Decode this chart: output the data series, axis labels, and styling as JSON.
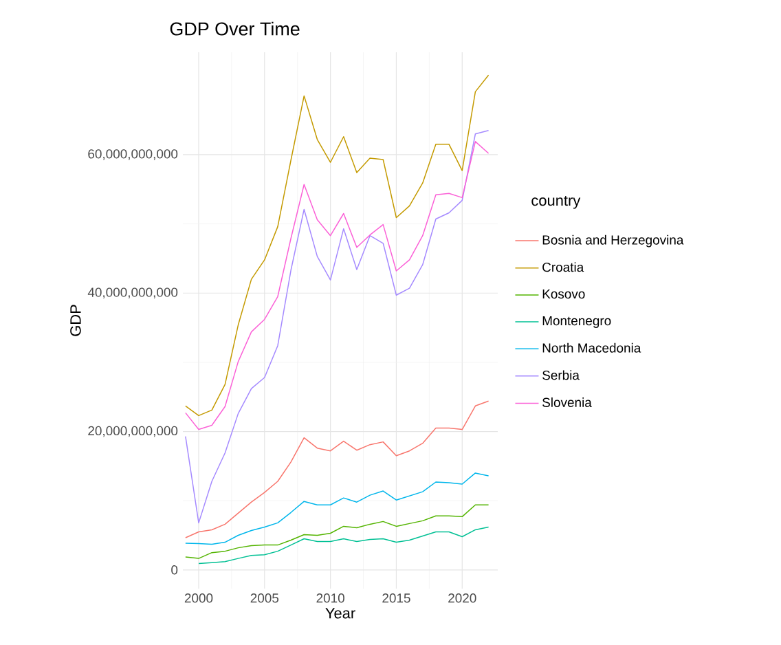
{
  "chart_data": {
    "type": "line",
    "title": "GDP Over Time",
    "xlabel": "Year",
    "ylabel": "GDP",
    "legend_title": "country",
    "x": [
      1999,
      2000,
      2001,
      2002,
      2003,
      2004,
      2005,
      2006,
      2007,
      2008,
      2009,
      2010,
      2011,
      2012,
      2013,
      2014,
      2015,
      2016,
      2017,
      2018,
      2019,
      2020,
      2021,
      2022
    ],
    "series": [
      {
        "name": "Bosnia and Herzegovina",
        "color": "#f8766d",
        "values": [
          4650000000,
          5500000000,
          5800000000,
          6600000000,
          8200000000,
          9800000000,
          11200000000,
          12800000000,
          15600000000,
          19100000000,
          17600000000,
          17200000000,
          18600000000,
          17300000000,
          18100000000,
          18500000000,
          16500000000,
          17200000000,
          18300000000,
          20500000000,
          20500000000,
          20300000000,
          23700000000,
          24400000000
        ]
      },
      {
        "name": "Croatia",
        "color": "#c49a00",
        "values": [
          23700000000,
          22300000000,
          23100000000,
          26800000000,
          35400000000,
          42000000000,
          44800000000,
          49600000000,
          59200000000,
          68500000000,
          62200000000,
          58900000000,
          62600000000,
          57400000000,
          59500000000,
          59300000000,
          50900000000,
          52600000000,
          55900000000,
          61500000000,
          61500000000,
          57700000000,
          69100000000,
          71500000000
        ]
      },
      {
        "name": "Kosovo",
        "color": "#53b400",
        "values": [
          1860000000,
          1660000000,
          2500000000,
          2700000000,
          3200000000,
          3500000000,
          3600000000,
          3600000000,
          4300000000,
          5100000000,
          5000000000,
          5300000000,
          6300000000,
          6100000000,
          6600000000,
          7000000000,
          6300000000,
          6700000000,
          7100000000,
          7800000000,
          7800000000,
          7700000000,
          9400000000,
          9400000000
        ]
      },
      {
        "name": "Montenegro",
        "color": "#00c094",
        "values": [
          null,
          930000000,
          1060000000,
          1200000000,
          1660000000,
          2100000000,
          2200000000,
          2700000000,
          3600000000,
          4500000000,
          4100000000,
          4100000000,
          4500000000,
          4100000000,
          4400000000,
          4500000000,
          4000000000,
          4300000000,
          4900000000,
          5500000000,
          5500000000,
          4800000000,
          5800000000,
          6200000000
        ]
      },
      {
        "name": "North Macedonia",
        "color": "#00b6eb",
        "values": [
          3850000000,
          3800000000,
          3700000000,
          4000000000,
          5000000000,
          5700000000,
          6200000000,
          6800000000,
          8300000000,
          9900000000,
          9400000000,
          9400000000,
          10400000000,
          9800000000,
          10800000000,
          11400000000,
          10100000000,
          10700000000,
          11300000000,
          12700000000,
          12600000000,
          12400000000,
          14000000000,
          13600000000
        ]
      },
      {
        "name": "Serbia",
        "color": "#a58aff",
        "values": [
          19300000000,
          6800000000,
          12800000000,
          16900000000,
          22600000000,
          26200000000,
          27800000000,
          32400000000,
          43300000000,
          52100000000,
          45300000000,
          41900000000,
          49300000000,
          43400000000,
          48300000000,
          47200000000,
          39700000000,
          40700000000,
          44100000000,
          50700000000,
          51600000000,
          53400000000,
          63000000000,
          63500000000
        ]
      },
      {
        "name": "Slovenia",
        "color": "#fb61d7",
        "values": [
          22700000000,
          20300000000,
          20900000000,
          23600000000,
          30100000000,
          34400000000,
          36200000000,
          39500000000,
          47900000000,
          55700000000,
          50600000000,
          48300000000,
          51500000000,
          46600000000,
          48400000000,
          49900000000,
          43200000000,
          44800000000,
          48300000000,
          54200000000,
          54400000000,
          53800000000,
          61900000000,
          60200000000
        ]
      }
    ],
    "xlim": [
      1998.8,
      2022.7
    ],
    "xticks": [
      2000,
      2005,
      2010,
      2015,
      2020
    ],
    "ylim": [
      -2700000000,
      74800000000
    ],
    "yticks": [
      0,
      {
        "value": 20000000000,
        "label": "20,000,000,000"
      },
      {
        "value": 40000000000,
        "label": "40,000,000,000"
      },
      {
        "value": 60000000000,
        "label": "60,000,000,000"
      }
    ],
    "grid": true,
    "legend": "right"
  }
}
